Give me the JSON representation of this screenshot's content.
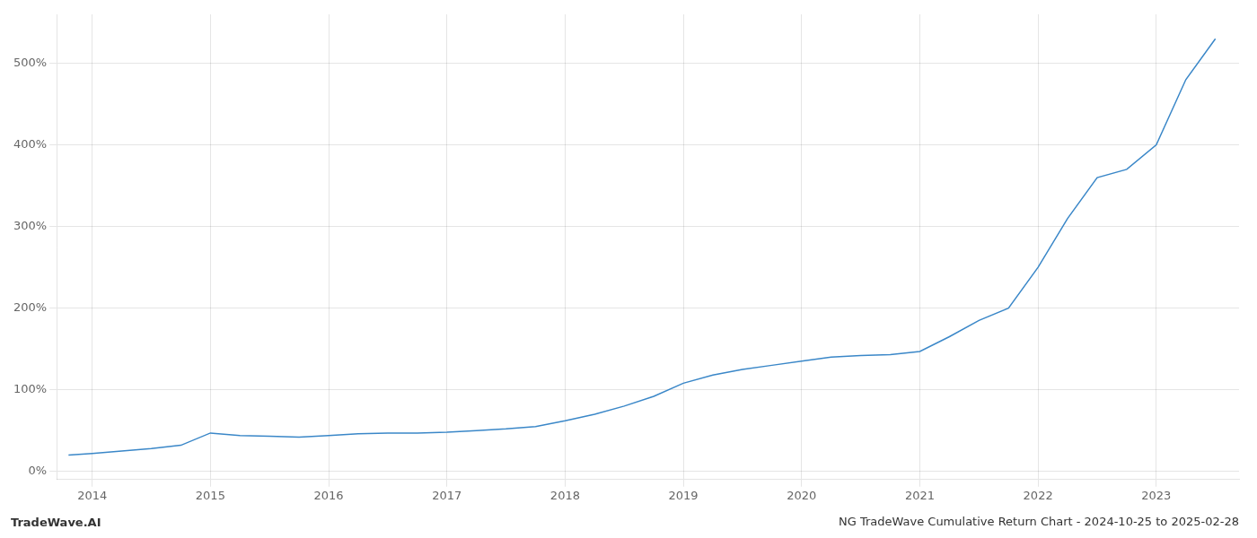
{
  "chart_data": {
    "type": "line",
    "title": "NG TradeWave Cumulative Return Chart - 2024-10-25 to 2025-02-28",
    "annotations": [
      "TradeWave.AI"
    ],
    "x": [
      2013.8,
      2014.0,
      2014.25,
      2014.5,
      2014.75,
      2015.0,
      2015.25,
      2015.5,
      2015.75,
      2016.0,
      2016.25,
      2016.5,
      2016.75,
      2017.0,
      2017.25,
      2017.5,
      2017.75,
      2018.0,
      2018.25,
      2018.5,
      2018.75,
      2019.0,
      2019.25,
      2019.5,
      2019.75,
      2020.0,
      2020.25,
      2020.5,
      2020.75,
      2021.0,
      2021.25,
      2021.5,
      2021.75,
      2022.0,
      2022.25,
      2022.5,
      2022.75,
      2023.0,
      2023.25,
      2023.5
    ],
    "values": [
      20,
      22,
      25,
      28,
      32,
      47,
      44,
      43,
      42,
      44,
      46,
      47,
      47,
      48,
      50,
      52,
      55,
      62,
      70,
      80,
      92,
      108,
      118,
      125,
      130,
      135,
      140,
      142,
      143,
      147,
      165,
      185,
      200,
      250,
      310,
      360,
      370,
      400,
      480,
      530
    ],
    "color": "#3a87c8",
    "xlim": [
      2013.7,
      2023.7
    ],
    "xticks": [
      2014,
      2015,
      2016,
      2017,
      2018,
      2019,
      2020,
      2021,
      2022,
      2023
    ],
    "ylim": [
      -10,
      560
    ],
    "yticks": [
      {
        "value": 0,
        "label": "0%"
      },
      {
        "value": 100,
        "label": "100%"
      },
      {
        "value": 200,
        "label": "200%"
      },
      {
        "value": 300,
        "label": "300%"
      },
      {
        "value": 400,
        "label": "400%"
      },
      {
        "value": 500,
        "label": "500%"
      }
    ],
    "grid": true
  }
}
